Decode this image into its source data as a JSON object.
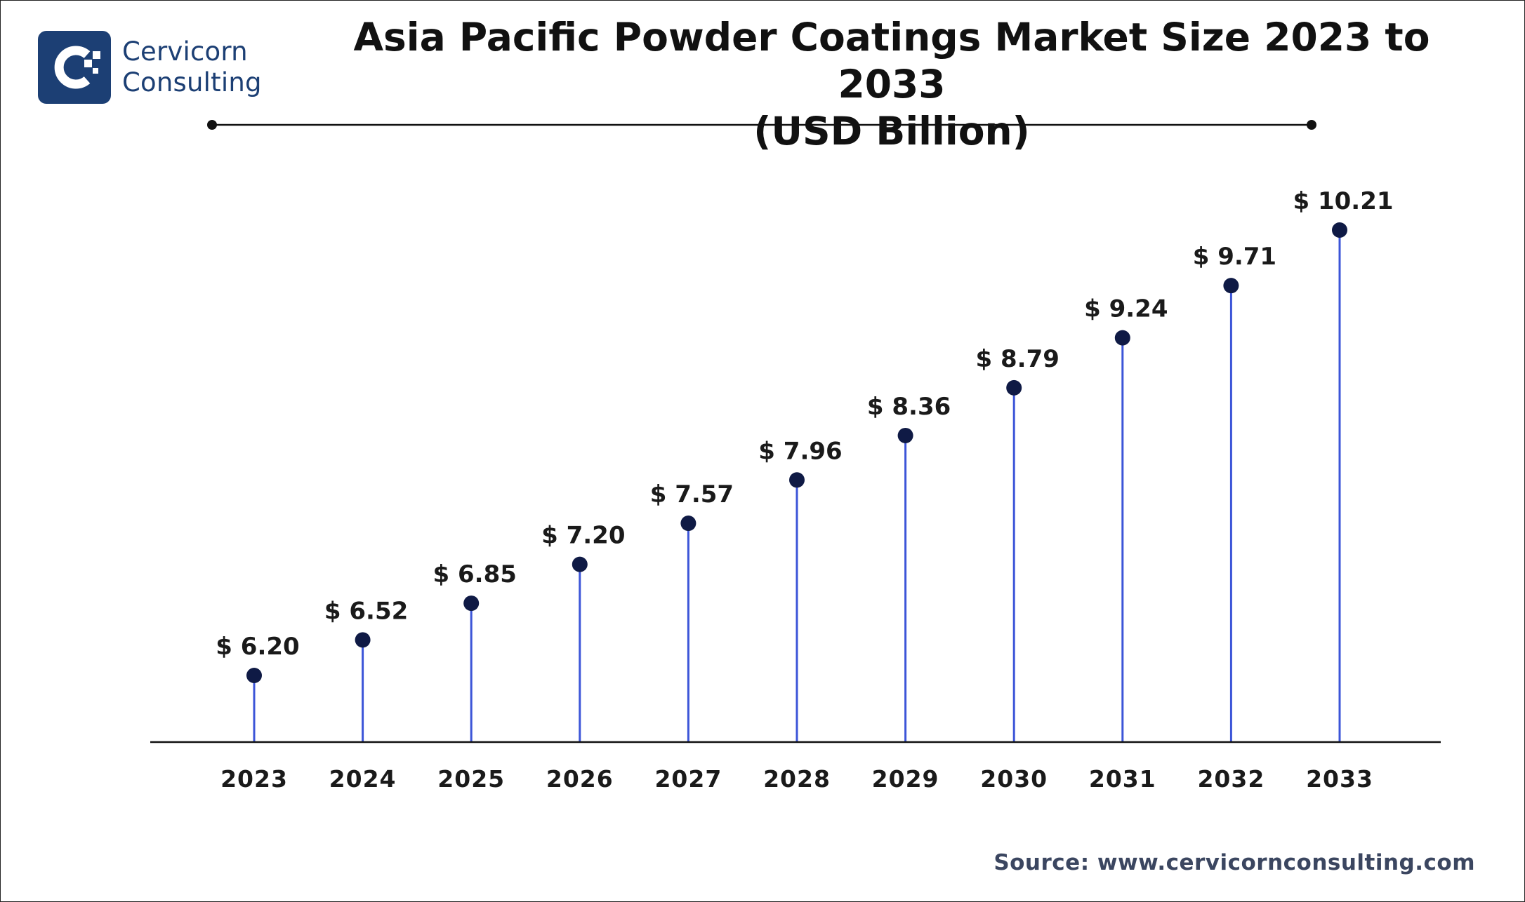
{
  "brand": {
    "name_line1": "Cervicorn",
    "name_line2": "Consulting",
    "logo_icon": "cervicorn-logo-icon",
    "color": "#1c3f74"
  },
  "source": "Source: www.cervicornconsulting.com",
  "colors": {
    "stem": "#3c55d8",
    "marker": "#0f1a45",
    "divider": "#111111"
  },
  "chart_data": {
    "type": "scatter",
    "style": "lollipop",
    "title_line1": "Asia Pacific Powder Coatings Market Size 2023 to 2033",
    "title_line2": "(USD Billion)",
    "categories": [
      "2023",
      "2024",
      "2025",
      "2026",
      "2027",
      "2028",
      "2029",
      "2030",
      "2031",
      "2032",
      "2033"
    ],
    "values": [
      6.2,
      6.52,
      6.85,
      7.2,
      7.57,
      7.96,
      8.36,
      8.79,
      9.24,
      9.71,
      10.21
    ],
    "data_labels": [
      "$ 6.20",
      "$ 6.52",
      "$ 6.85",
      "$ 7.20",
      "$ 7.57",
      "$ 7.96",
      "$ 8.36",
      "$ 8.79",
      "$ 9.24",
      "$ 9.71",
      "$ 10.21"
    ],
    "xlabel": "",
    "ylabel": "",
    "grid": false,
    "legend": "none"
  }
}
